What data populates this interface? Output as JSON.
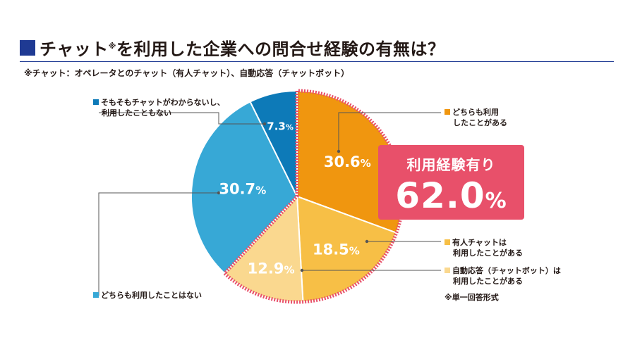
{
  "header": {
    "title": "チャットを利用した企業への問合せ経験の有無は？",
    "title_mark": "※",
    "footnote": "※チャット：オペレータとのチャット（有人チャット）、自動応答（チャットボット）"
  },
  "chart_data": {
    "type": "pie",
    "title": "チャットを利用した企業への問合せ経験の有無は？",
    "unit": "%",
    "slices": [
      {
        "label_lines": [
          "どちらも利用",
          "したことがある"
        ],
        "value": 30.6,
        "display": "30.6",
        "color": "#f0960f"
      },
      {
        "label_lines": [
          "有人チャットは",
          "利用したことがある"
        ],
        "value": 18.5,
        "display": "18.5",
        "color": "#f7bf46"
      },
      {
        "label_lines": [
          "自動応答（チャットボット）は",
          "利用したことがある"
        ],
        "value": 12.9,
        "display": "12.9",
        "color": "#fad88f"
      },
      {
        "label_lines": [
          "どちらも利用したことはない"
        ],
        "value": 30.7,
        "display": "30.7",
        "color": "#37a8d6"
      },
      {
        "label_lines": [
          "そもそもチャットがわからないし、",
          "利用したこともない"
        ],
        "value": 7.3,
        "display": "7.3",
        "color": "#0d7ab8"
      }
    ],
    "highlight": {
      "label": "利用経験有り",
      "value": 62.0,
      "display": "62.0",
      "unit": "%",
      "color": "#e8506a"
    },
    "note": "※単一回答形式"
  }
}
